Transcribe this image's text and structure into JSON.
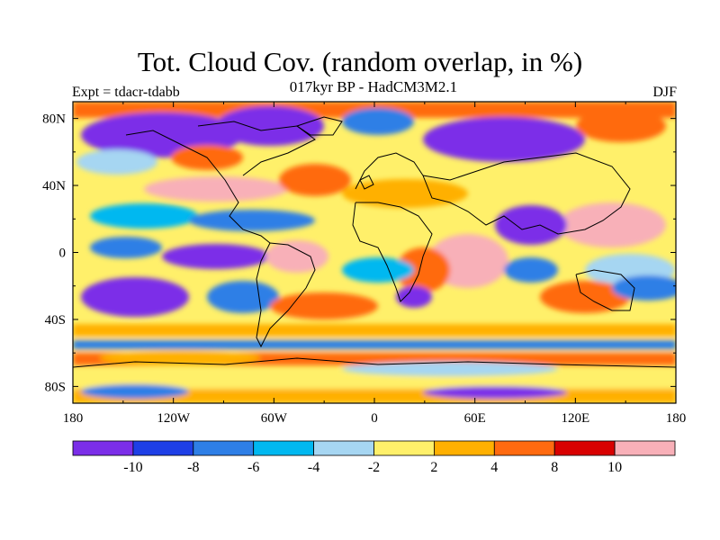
{
  "title": "Tot. Cloud Cov. (random overlap, in %)",
  "subtitle": "017kyr BP - HadCM3M2.1",
  "left_label": "Expt = tdacr-tdabb",
  "right_label": "DJF",
  "map": {
    "projection": "cylindrical-equidistant",
    "lon_range": [
      -180,
      180
    ],
    "lat_range": [
      -90,
      90
    ],
    "lon_ticks": [
      "180",
      "120W",
      "60W",
      "0",
      "60E",
      "120E",
      "180"
    ],
    "lat_ticks": [
      "80N",
      "40N",
      "0",
      "40S",
      "80S"
    ],
    "coastlines": true,
    "field": "difference in total cloud cover (%)"
  },
  "colorbar": {
    "colors": [
      "#7b2ee8",
      "#1e3fe6",
      "#2e7fe6",
      "#00b8f0",
      "#a6d6f2",
      "#fff06a",
      "#ffb000",
      "#ff6a10",
      "#d80000",
      "#f8b0b8"
    ],
    "tick_labels": [
      "-10",
      "-8",
      "-6",
      "-4",
      "-2",
      "2",
      "4",
      "8",
      "10"
    ]
  }
}
